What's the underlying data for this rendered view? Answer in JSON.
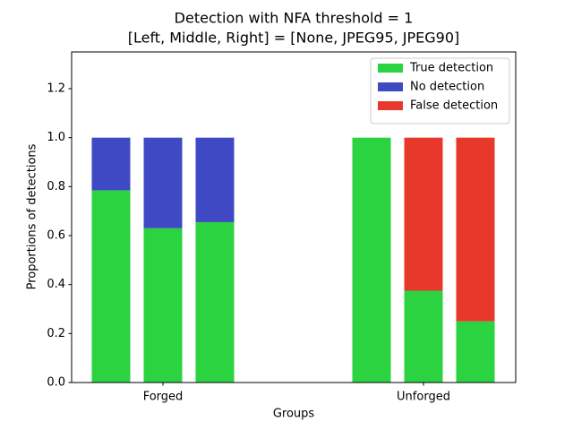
{
  "chart_data": {
    "type": "grouped_stacked_bar",
    "title": "Detection with NFA threshold = 1",
    "subtitle": "[Left, Middle, Right] = [None, JPEG95, JPEG90]",
    "x_label": "Groups",
    "y_label": "Proportions of detections",
    "categories": [
      "Forged",
      "Unforged"
    ],
    "series": [
      {
        "name": "True detection",
        "color": "#2ad33f",
        "values": [
          [
            0.785,
            0.63,
            0.655
          ],
          [
            1.0,
            0.375,
            0.25
          ]
        ]
      },
      {
        "name": "No detection",
        "color": "#4049c4",
        "values": [
          [
            0.215,
            0.37,
            0.345
          ],
          [
            0,
            0,
            0
          ]
        ]
      },
      {
        "name": "False detection",
        "color": "#e8382b",
        "values": [
          [
            0,
            0,
            0
          ],
          [
            0,
            0.625,
            0.75
          ]
        ]
      }
    ],
    "ylim": [
      0,
      1.35
    ],
    "yticks": [
      {
        "value": 0,
        "label": "0.0"
      },
      0.2,
      0.4,
      0.6,
      0.8,
      {
        "value": 1.0,
        "label": "1.0"
      },
      1.2
    ],
    "legend": "upper right",
    "grid": false
  }
}
